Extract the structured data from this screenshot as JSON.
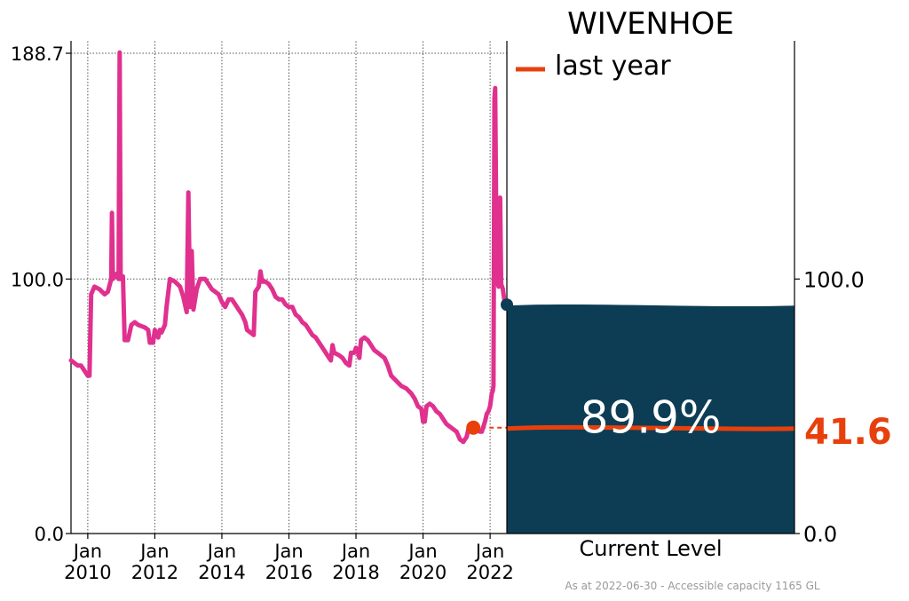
{
  "colors": {
    "history_line": "#e0318f",
    "last_year": "#e8400c",
    "level_fill": "#0c3d55",
    "grid": "#555555",
    "axis": "#000000",
    "footer": "#999999"
  },
  "chart_data": {
    "type": "line",
    "title": "WIVENHOE",
    "legend": {
      "label": "last year",
      "placement": "top-right"
    },
    "current_label": "Current Level",
    "current_percent": 89.9,
    "current_percent_label": "89.9%",
    "last_year_value": 41.6,
    "last_year_label": "41.6",
    "footer": "As at 2022-06-30 - Accessible capacity 1165 GL",
    "ylim": [
      0,
      188.7
    ],
    "grid": true,
    "yticks_left": [
      {
        "value": 0,
        "label": "0.0"
      },
      {
        "value": 100,
        "label": "100.0"
      },
      {
        "value": 188.7,
        "label": "188.7"
      }
    ],
    "yticks_right": [
      {
        "value": 0,
        "label": "0.0"
      },
      {
        "value": 100,
        "label": "100.0"
      }
    ],
    "xlim": [
      2009.5,
      2022.5
    ],
    "xticks": [
      {
        "value": 2010,
        "label": [
          "Jan",
          "2010"
        ]
      },
      {
        "value": 2012,
        "label": [
          "Jan",
          "2012"
        ]
      },
      {
        "value": 2014,
        "label": [
          "Jan",
          "2014"
        ]
      },
      {
        "value": 2016,
        "label": [
          "Jan",
          "2016"
        ]
      },
      {
        "value": 2018,
        "label": [
          "Jan",
          "2018"
        ]
      },
      {
        "value": 2020,
        "label": [
          "Jan",
          "2020"
        ]
      },
      {
        "value": 2022,
        "label": [
          "Jan",
          "2022"
        ]
      }
    ],
    "last_year_marker": {
      "x": 2021.5,
      "y": 41.6
    },
    "current_marker": {
      "x": 2022.5,
      "y": 89.9
    },
    "series": [
      {
        "values": [
          [
            2009.5,
            68
          ],
          [
            2009.6,
            67
          ],
          [
            2009.7,
            66
          ],
          [
            2009.8,
            66
          ],
          [
            2009.9,
            64
          ],
          [
            2010.0,
            62
          ],
          [
            2010.05,
            62
          ],
          [
            2010.1,
            94
          ],
          [
            2010.2,
            97
          ],
          [
            2010.35,
            96
          ],
          [
            2010.5,
            94
          ],
          [
            2010.6,
            95
          ],
          [
            2010.7,
            100
          ],
          [
            2010.72,
            126
          ],
          [
            2010.75,
            100
          ],
          [
            2010.85,
            102
          ],
          [
            2010.92,
            100
          ],
          [
            2010.95,
            189
          ],
          [
            2010.98,
            100
          ],
          [
            2011.05,
            101
          ],
          [
            2011.1,
            76
          ],
          [
            2011.2,
            76
          ],
          [
            2011.3,
            82
          ],
          [
            2011.4,
            83
          ],
          [
            2011.5,
            82
          ],
          [
            2011.7,
            81
          ],
          [
            2011.8,
            80
          ],
          [
            2011.85,
            75
          ],
          [
            2011.95,
            75
          ],
          [
            2012.0,
            80
          ],
          [
            2012.1,
            77
          ],
          [
            2012.15,
            80
          ],
          [
            2012.2,
            79
          ],
          [
            2012.3,
            82
          ],
          [
            2012.35,
            89
          ],
          [
            2012.45,
            100
          ],
          [
            2012.6,
            99
          ],
          [
            2012.75,
            97
          ],
          [
            2012.85,
            93
          ],
          [
            2012.95,
            87
          ],
          [
            2013.0,
            134
          ],
          [
            2013.05,
            89
          ],
          [
            2013.1,
            111
          ],
          [
            2013.15,
            88
          ],
          [
            2013.25,
            96
          ],
          [
            2013.35,
            100
          ],
          [
            2013.5,
            100
          ],
          [
            2013.6,
            98
          ],
          [
            2013.7,
            96
          ],
          [
            2013.8,
            95
          ],
          [
            2013.9,
            94
          ],
          [
            2014.0,
            91
          ],
          [
            2014.1,
            89
          ],
          [
            2014.2,
            92
          ],
          [
            2014.3,
            92
          ],
          [
            2014.4,
            90
          ],
          [
            2014.5,
            88
          ],
          [
            2014.6,
            86
          ],
          [
            2014.7,
            83
          ],
          [
            2014.75,
            80
          ],
          [
            2014.85,
            79
          ],
          [
            2014.95,
            78
          ],
          [
            2015.0,
            95
          ],
          [
            2015.1,
            97
          ],
          [
            2015.15,
            103
          ],
          [
            2015.2,
            99
          ],
          [
            2015.3,
            99
          ],
          [
            2015.4,
            98
          ],
          [
            2015.5,
            96
          ],
          [
            2015.6,
            93
          ],
          [
            2015.7,
            92
          ],
          [
            2015.8,
            92
          ],
          [
            2015.9,
            90
          ],
          [
            2016.0,
            89
          ],
          [
            2016.1,
            89
          ],
          [
            2016.2,
            86
          ],
          [
            2016.3,
            85
          ],
          [
            2016.4,
            83
          ],
          [
            2016.5,
            82
          ],
          [
            2016.6,
            80
          ],
          [
            2016.7,
            78
          ],
          [
            2016.8,
            77
          ],
          [
            2016.9,
            75
          ],
          [
            2017.0,
            73
          ],
          [
            2017.1,
            71
          ],
          [
            2017.2,
            69
          ],
          [
            2017.25,
            68
          ],
          [
            2017.3,
            74
          ],
          [
            2017.35,
            71
          ],
          [
            2017.5,
            70
          ],
          [
            2017.6,
            69
          ],
          [
            2017.7,
            67
          ],
          [
            2017.8,
            66
          ],
          [
            2017.85,
            71
          ],
          [
            2017.95,
            71
          ],
          [
            2018.0,
            73
          ],
          [
            2018.05,
            72
          ],
          [
            2018.1,
            69
          ],
          [
            2018.15,
            76
          ],
          [
            2018.25,
            77
          ],
          [
            2018.35,
            76
          ],
          [
            2018.45,
            74
          ],
          [
            2018.55,
            72
          ],
          [
            2018.65,
            71
          ],
          [
            2018.75,
            70
          ],
          [
            2018.85,
            69
          ],
          [
            2018.95,
            66
          ],
          [
            2019.05,
            62
          ],
          [
            2019.2,
            60
          ],
          [
            2019.35,
            58
          ],
          [
            2019.5,
            57
          ],
          [
            2019.65,
            55
          ],
          [
            2019.75,
            53
          ],
          [
            2019.85,
            50
          ],
          [
            2019.95,
            49
          ],
          [
            2020.0,
            44
          ],
          [
            2020.05,
            44
          ],
          [
            2020.1,
            50
          ],
          [
            2020.2,
            51
          ],
          [
            2020.3,
            50
          ],
          [
            2020.4,
            48
          ],
          [
            2020.5,
            47
          ],
          [
            2020.6,
            45
          ],
          [
            2020.7,
            43
          ],
          [
            2020.8,
            42
          ],
          [
            2020.9,
            41
          ],
          [
            2021.0,
            40
          ],
          [
            2021.1,
            37
          ],
          [
            2021.2,
            36
          ],
          [
            2021.3,
            38
          ],
          [
            2021.35,
            41
          ],
          [
            2021.4,
            41
          ],
          [
            2021.5,
            42
          ],
          [
            2021.6,
            41
          ],
          [
            2021.7,
            40
          ],
          [
            2021.75,
            40
          ],
          [
            2021.85,
            44
          ],
          [
            2021.9,
            47
          ],
          [
            2021.95,
            48
          ],
          [
            2022.0,
            50
          ],
          [
            2022.05,
            55
          ],
          [
            2022.08,
            56
          ],
          [
            2022.1,
            58
          ],
          [
            2022.13,
            171
          ],
          [
            2022.15,
            175
          ],
          [
            2022.18,
            128
          ],
          [
            2022.2,
            101
          ],
          [
            2022.25,
            97
          ],
          [
            2022.3,
            132
          ],
          [
            2022.33,
            98
          ],
          [
            2022.38,
            96
          ],
          [
            2022.42,
            92
          ],
          [
            2022.46,
            90
          ],
          [
            2022.5,
            89.9
          ]
        ]
      }
    ]
  }
}
